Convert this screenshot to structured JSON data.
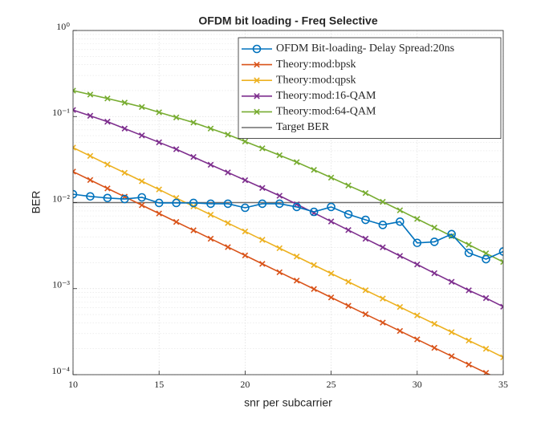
{
  "chart_data": {
    "type": "line",
    "title": "OFDM bit loading -  Freq Selective",
    "x_label": "snr per subcarrier",
    "y_label": "BER",
    "x": [
      10,
      11,
      12,
      13,
      14,
      15,
      16,
      17,
      18,
      19,
      20,
      21,
      22,
      23,
      24,
      25,
      26,
      27,
      28,
      29,
      30,
      31,
      32,
      33,
      34,
      35
    ],
    "xlim": [
      10,
      35
    ],
    "xticks": [
      10,
      15,
      20,
      25,
      30,
      35
    ],
    "ylim": [
      0.0001,
      1
    ],
    "y_scale": "log",
    "yticks": [
      {
        "value": 0.0001,
        "label": "10⁻⁴"
      },
      {
        "value": 0.001,
        "label": "10⁻³"
      },
      {
        "value": 0.01,
        "label": "10⁻²"
      },
      {
        "value": 0.1,
        "label": "10⁻¹"
      },
      {
        "value": 1,
        "label": "10⁰"
      }
    ],
    "grid": true,
    "minor_grid": true,
    "legend": "top-right",
    "series": [
      {
        "name": "OFDM Bit-loading- Delay Spread:20ns",
        "color": "#0072BD",
        "marker": "o",
        "values": [
          0.0125,
          0.0118,
          0.0113,
          0.011,
          0.0115,
          0.0099,
          0.0099,
          0.0099,
          0.0097,
          0.0097,
          0.0087,
          0.0097,
          0.0097,
          0.0089,
          0.0078,
          0.0089,
          0.0073,
          0.0063,
          0.0055,
          0.006,
          0.0034,
          0.0035,
          0.0043,
          0.0026,
          0.0022,
          0.0027
        ]
      },
      {
        "name": "Theory:mod:bpsk",
        "color": "#D95319",
        "marker": "x",
        "values": [
          0.0229,
          0.0183,
          0.0146,
          0.0117,
          0.00933,
          0.00746,
          0.00596,
          0.00476,
          0.0038,
          0.00304,
          0.00243,
          0.00194,
          0.00155,
          0.00124,
          0.000989,
          0.00079,
          0.000631,
          0.000504,
          0.000403,
          0.000322,
          0.000257,
          0.000205,
          0.000164,
          0.000131,
          0.000105,
          8.37e-05
        ]
      },
      {
        "name": "Theory:mod:qpsk",
        "color": "#EDB120",
        "marker": "x",
        "values": [
          0.0435,
          0.0348,
          0.0277,
          0.0222,
          0.0177,
          0.0142,
          0.0113,
          0.00904,
          0.00722,
          0.00578,
          0.00462,
          0.00369,
          0.00295,
          0.00236,
          0.00188,
          0.0015,
          0.0012,
          0.000958,
          0.000766,
          0.000612,
          0.000488,
          0.00039,
          0.000312,
          0.000249,
          0.0002,
          0.000159
        ]
      },
      {
        "name": "Theory:mod:16-QAM",
        "color": "#7E2F8E",
        "marker": "x",
        "values": [
          0.119,
          0.102,
          0.0871,
          0.0724,
          0.0603,
          0.0501,
          0.0417,
          0.0339,
          0.0275,
          0.0224,
          0.0182,
          0.0148,
          0.012,
          0.00955,
          0.00759,
          0.00603,
          0.00479,
          0.0038,
          0.00302,
          0.0024,
          0.00191,
          0.00151,
          0.0012,
          0.000955,
          0.000776,
          0.000617
        ]
      },
      {
        "name": "Theory:mod:64-QAM",
        "color": "#77AC30",
        "marker": "x",
        "values": [
          0.2,
          0.18,
          0.162,
          0.145,
          0.129,
          0.112,
          0.0977,
          0.0851,
          0.0724,
          0.0617,
          0.0513,
          0.0427,
          0.0355,
          0.0295,
          0.024,
          0.0195,
          0.0158,
          0.0129,
          0.0102,
          0.00813,
          0.00646,
          0.00513,
          0.00407,
          0.00324,
          0.00257,
          0.00204
        ]
      }
    ],
    "target": {
      "name": "Target BER",
      "value": 0.01,
      "color": "#6e6e6e"
    }
  }
}
